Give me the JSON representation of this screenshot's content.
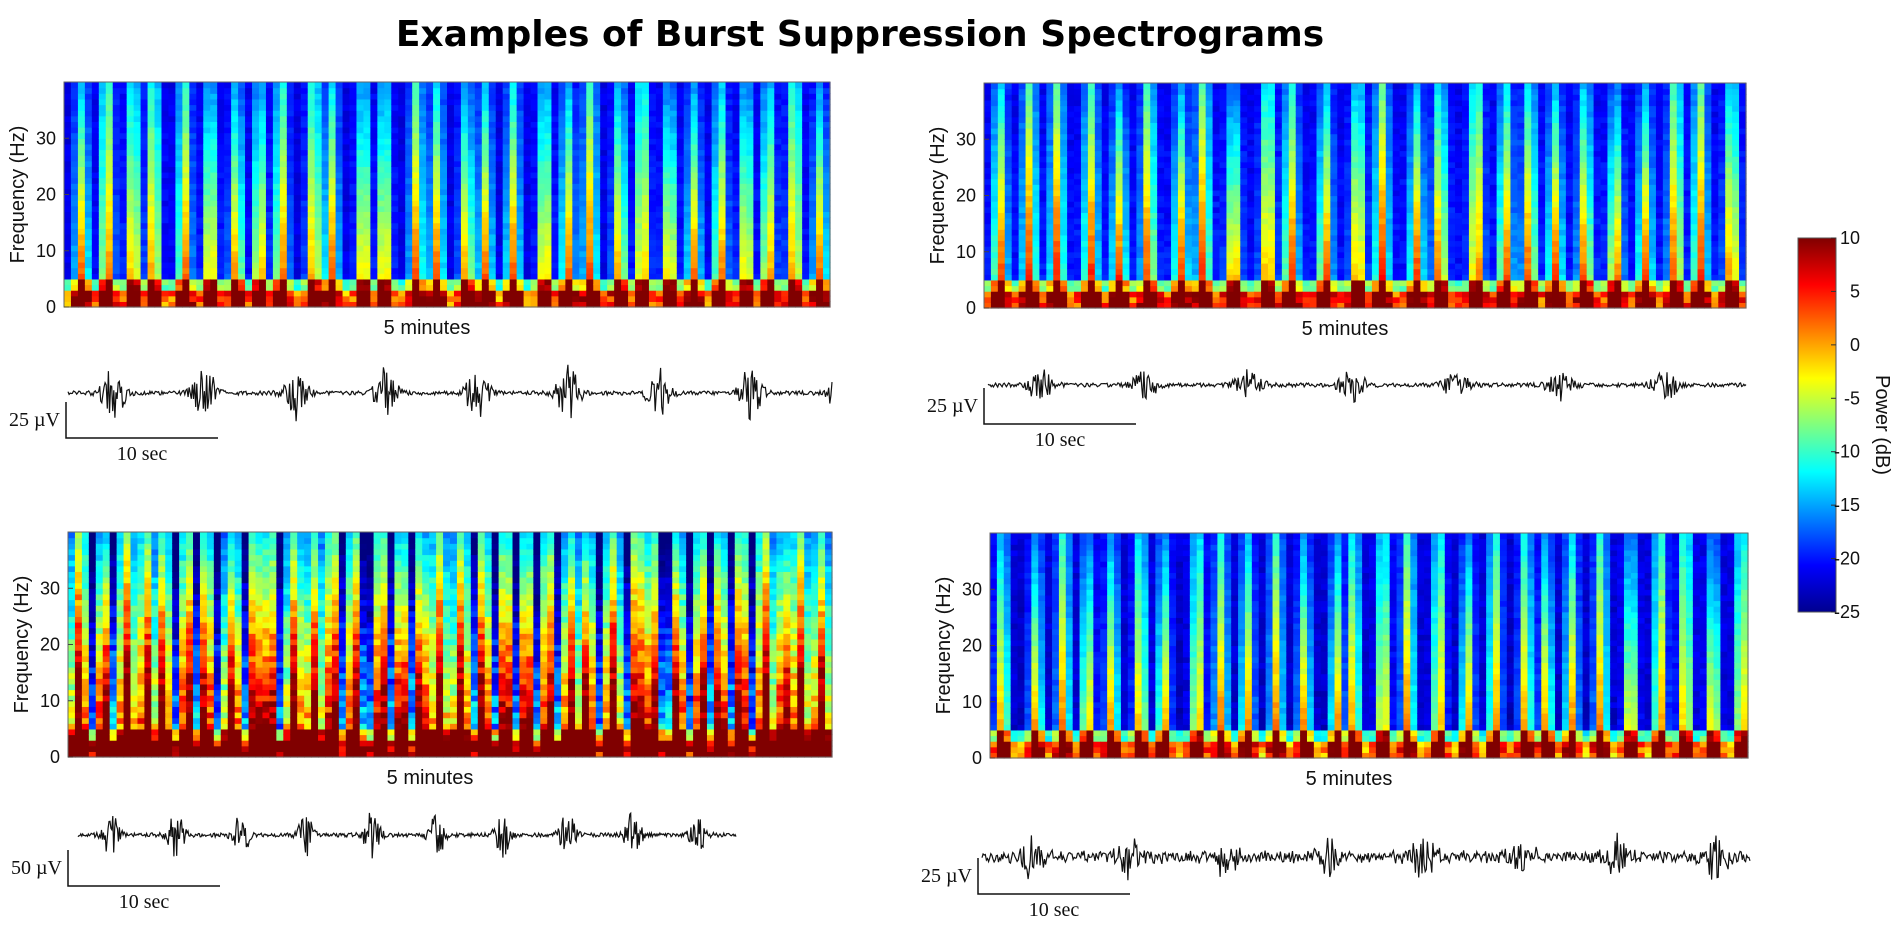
{
  "title": "Examples of Burst Suppression Spectrograms",
  "colorbar": {
    "label": "Power (dB)",
    "ticks": [
      10,
      5,
      0,
      -5,
      -10,
      -15,
      -20,
      -25
    ],
    "range": [
      -25,
      10
    ]
  },
  "chart_data": [
    {
      "type": "heatmap",
      "panel": "top-left",
      "ylabel": "Frequency (Hz)",
      "xlabel": "5 minutes",
      "yticks": [
        0,
        10,
        20,
        30
      ],
      "ylim": [
        0,
        40
      ],
      "burst_count": 30,
      "trace": {
        "amplitude_label": "25 µV",
        "time_label": "10 sec"
      }
    },
    {
      "type": "heatmap",
      "panel": "top-right",
      "ylabel": "Frequency (Hz)",
      "xlabel": "5 minutes",
      "yticks": [
        0,
        10,
        20,
        30
      ],
      "ylim": [
        0,
        40
      ],
      "burst_count": 26,
      "trace": {
        "amplitude_label": "25 µV",
        "time_label": "10 sec"
      }
    },
    {
      "type": "heatmap",
      "panel": "bottom-left",
      "ylabel": "Frequency (Hz)",
      "xlabel": "5 minutes",
      "yticks": [
        0,
        10,
        20,
        30
      ],
      "ylim": [
        0,
        40
      ],
      "burst_count": 36,
      "trace": {
        "amplitude_label": "50 µV",
        "time_label": "10 sec"
      }
    },
    {
      "type": "heatmap",
      "panel": "bottom-right",
      "ylabel": "Frequency (Hz)",
      "xlabel": "5 minutes",
      "yticks": [
        0,
        10,
        20,
        30
      ],
      "ylim": [
        0,
        40
      ],
      "burst_count": 28,
      "trace": {
        "amplitude_label": "25 µV",
        "time_label": "10 sec"
      }
    }
  ]
}
